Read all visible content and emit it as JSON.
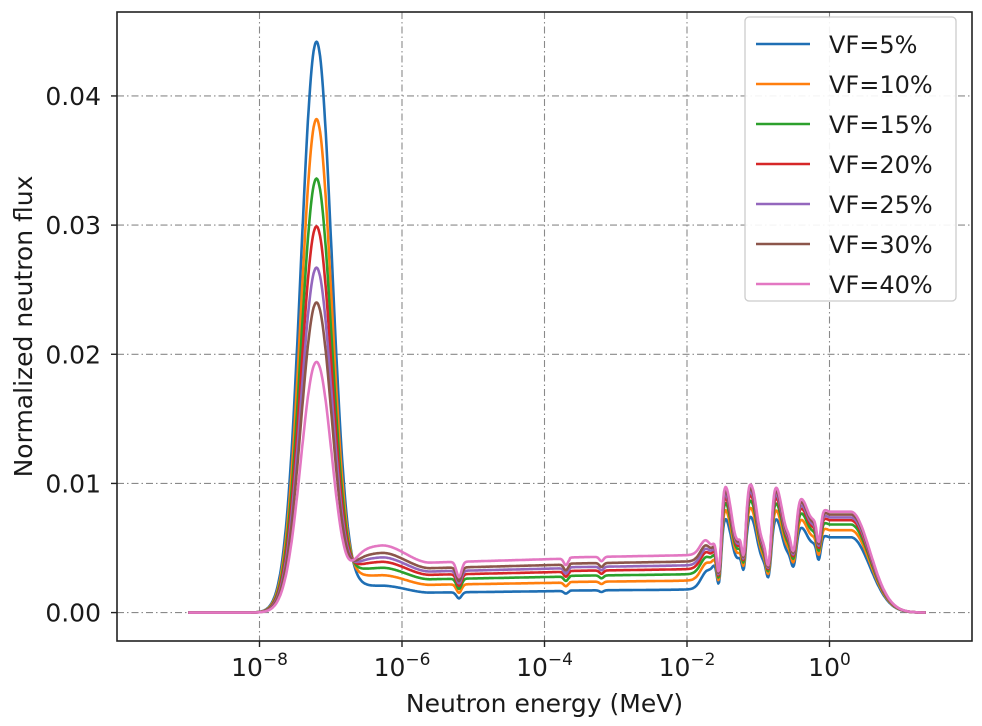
{
  "chart_data": {
    "type": "line",
    "title": "",
    "xlabel": "Neutron energy (MeV)",
    "ylabel": "Normalized neutron flux",
    "xscale": "log",
    "xlim": [
      1e-10,
      100
    ],
    "ylim": [
      -0.0022,
      0.0465
    ],
    "x_ticks": [
      {
        "base": "10",
        "exp": "−8",
        "value": 1e-08
      },
      {
        "base": "10",
        "exp": "−6",
        "value": 1e-06
      },
      {
        "base": "10",
        "exp": "−4",
        "value": 0.0001
      },
      {
        "base": "10",
        "exp": "−2",
        "value": 0.01
      },
      {
        "base": "10",
        "exp": "0",
        "value": 1
      }
    ],
    "y_ticks": [
      {
        "label": "0.00",
        "value": 0.0
      },
      {
        "label": "0.01",
        "value": 0.01
      },
      {
        "label": "0.02",
        "value": 0.02
      },
      {
        "label": "0.03",
        "value": 0.03
      },
      {
        "label": "0.04",
        "value": 0.04
      }
    ],
    "grid": true,
    "legend_position": "top-right",
    "series": [
      {
        "name": "VF=5%",
        "color": "#1f6fb4",
        "peak": 0.0442,
        "epi": 0.0018,
        "fast": 0.0053
      },
      {
        "name": "VF=10%",
        "color": "#ff7f0e",
        "peak": 0.0382,
        "epi": 0.0025,
        "fast": 0.0058
      },
      {
        "name": "VF=15%",
        "color": "#2ca02c",
        "peak": 0.0336,
        "epi": 0.003,
        "fast": 0.0062
      },
      {
        "name": "VF=20%",
        "color": "#d62728",
        "peak": 0.0299,
        "epi": 0.0034,
        "fast": 0.0065
      },
      {
        "name": "VF=25%",
        "color": "#9467bd",
        "peak": 0.0267,
        "epi": 0.0037,
        "fast": 0.0067
      },
      {
        "name": "VF=30%",
        "color": "#8c564b",
        "peak": 0.024,
        "epi": 0.004,
        "fast": 0.0069
      },
      {
        "name": "VF=40%",
        "color": "#e377c2",
        "peak": 0.0194,
        "epi": 0.0045,
        "fast": 0.0071
      }
    ]
  }
}
